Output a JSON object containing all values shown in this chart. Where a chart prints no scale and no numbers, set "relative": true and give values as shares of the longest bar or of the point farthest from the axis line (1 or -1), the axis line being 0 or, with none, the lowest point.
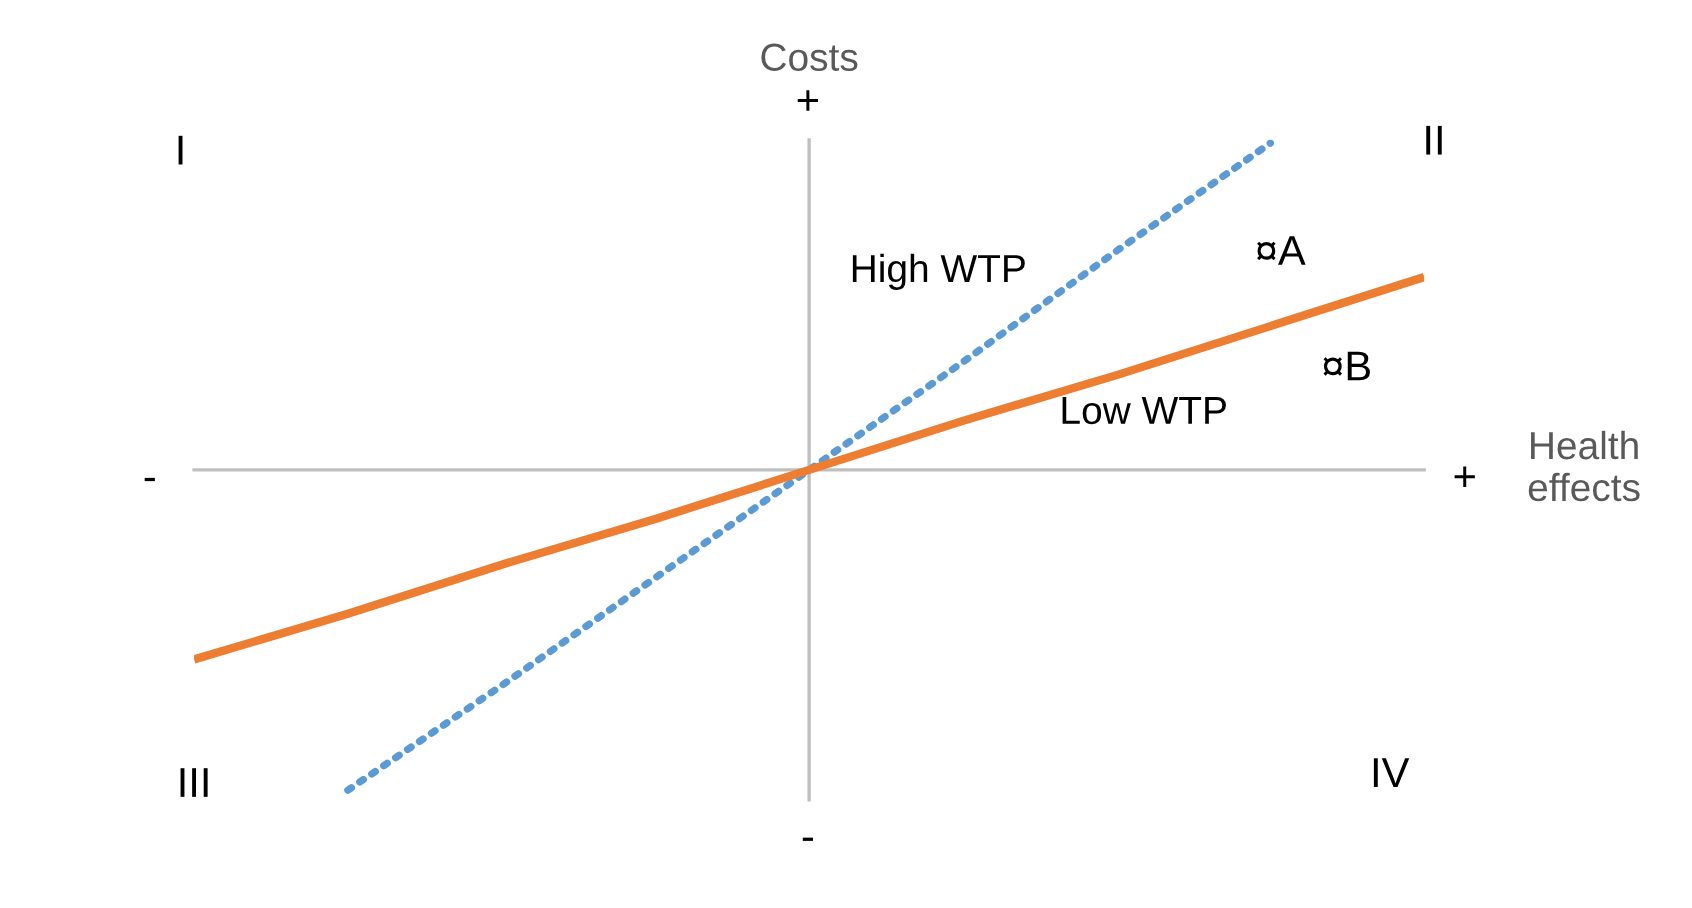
{
  "chart_data": {
    "type": "line",
    "relative": true,
    "xlabel": "Health effects",
    "ylabel": "Costs",
    "categories": [
      null,
      null,
      null,
      null,
      null,
      null,
      null,
      null,
      null
    ],
    "marker": "none",
    "series": [
      {
        "name": "High WTP",
        "color": "#5b9bd5",
        "line_style": "dotted",
        "values": [
          null,
          -0.98,
          -0.66,
          -0.33,
          0,
          0.33,
          0.67,
          1.0,
          null
        ]
      },
      {
        "name": "Low WTP",
        "color": "#ed7d31",
        "line_style": "solid",
        "values": [
          -0.58,
          -0.44,
          -0.29,
          -0.15,
          0,
          0.15,
          0.29,
          0.44,
          0.59
        ]
      }
    ],
    "annotations": [
      "¤A",
      "¤B",
      "I",
      "II",
      "III",
      "IV",
      "+",
      "-",
      "-",
      "+"
    ]
  }
}
